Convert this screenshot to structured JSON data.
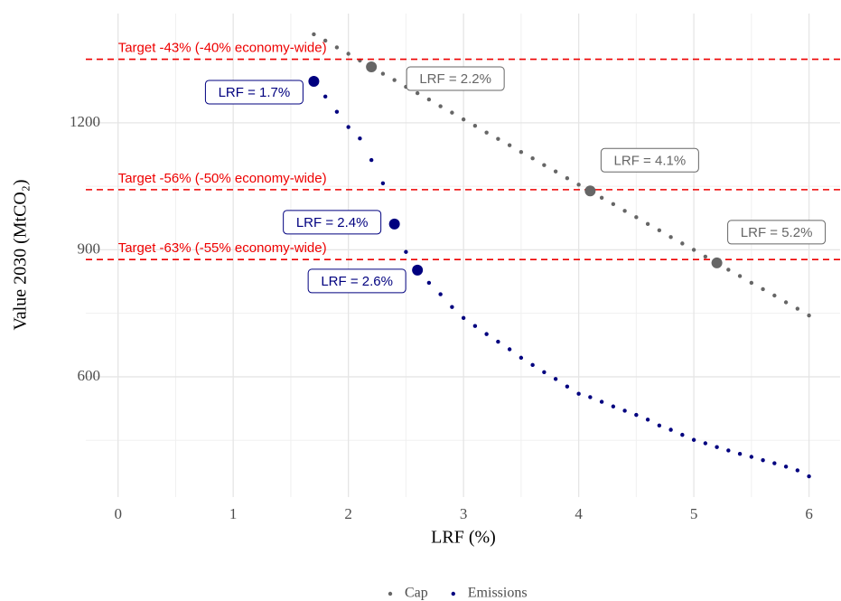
{
  "chart_data": {
    "type": "scatter",
    "xlabel": "LRF (%)",
    "ylabel": "Value 2030 (MtCO₂)",
    "xlim": [
      -0.28,
      6.27
    ],
    "ylim": [
      316,
      1458
    ],
    "xticks": [
      0,
      1,
      2,
      3,
      4,
      5,
      6
    ],
    "yticks": [
      600,
      900,
      1200
    ],
    "minor_xticks": [
      0.5,
      1.5,
      2.5,
      3.5,
      4.5,
      5.5
    ],
    "minor_yticks": [
      450,
      750,
      1050,
      1350
    ],
    "grid": true,
    "legend": "bottom",
    "x": [
      1.7,
      1.8,
      1.9,
      2.0,
      2.1,
      2.2,
      2.3,
      2.4,
      2.5,
      2.6,
      2.7,
      2.8,
      2.9,
      3.0,
      3.1,
      3.2,
      3.3,
      3.4,
      3.5,
      3.6,
      3.7,
      3.8,
      3.9,
      4.0,
      4.1,
      4.2,
      4.3,
      4.4,
      4.5,
      4.6,
      4.7,
      4.8,
      4.9,
      5.0,
      5.1,
      5.2,
      5.3,
      5.4,
      5.5,
      5.6,
      5.7,
      5.8,
      5.9,
      6.0
    ],
    "series": [
      {
        "name": "Cap",
        "color": "#666666",
        "values": [
          1409,
          1394,
          1378,
          1363,
          1347,
          1332,
          1316,
          1301,
          1285,
          1270,
          1255,
          1239,
          1224,
          1208,
          1193,
          1177,
          1162,
          1147,
          1131,
          1116,
          1100,
          1085,
          1069,
          1054,
          1039,
          1023,
          1008,
          992,
          977,
          961,
          946,
          930,
          915,
          900,
          884,
          869,
          853,
          838,
          822,
          807,
          792,
          776,
          761,
          745
        ]
      },
      {
        "name": "Emissions",
        "color": "#00007f",
        "values": [
          1298,
          1262,
          1226,
          1190,
          1163,
          1112,
          1057,
          961,
          895,
          852,
          822,
          795,
          765,
          739,
          720,
          701,
          683,
          665,
          645,
          628,
          611,
          595,
          577,
          560,
          552,
          541,
          530,
          520,
          510,
          499,
          485,
          475,
          463,
          451,
          443,
          434,
          426,
          418,
          411,
          403,
          396,
          388,
          379,
          365
        ]
      }
    ],
    "hlines": [
      {
        "y": 1350,
        "label": "Target -43% (-40% economy-wide)",
        "color": "#ee0000"
      },
      {
        "y": 1042,
        "label": "Target -56% (-50% economy-wide)",
        "color": "#ee0000"
      },
      {
        "y": 877,
        "label": "Target -63% (-55% economy-wide)",
        "color": "#ee0000"
      }
    ],
    "annotations": [
      {
        "x": 2.2,
        "y": 1332,
        "label": "LRF = 2.2%",
        "color": "#666666"
      },
      {
        "x": 4.1,
        "y": 1039,
        "label": "LRF = 4.1%",
        "color": "#666666"
      },
      {
        "x": 5.2,
        "y": 869,
        "label": "LRF = 5.2%",
        "color": "#666666"
      },
      {
        "x": 1.7,
        "y": 1298,
        "label": "LRF = 1.7%",
        "color": "#00007f"
      },
      {
        "x": 2.4,
        "y": 961,
        "label": "LRF = 2.4%",
        "color": "#00007f"
      },
      {
        "x": 2.6,
        "y": 852,
        "label": "LRF = 2.6%",
        "color": "#00007f"
      }
    ]
  }
}
